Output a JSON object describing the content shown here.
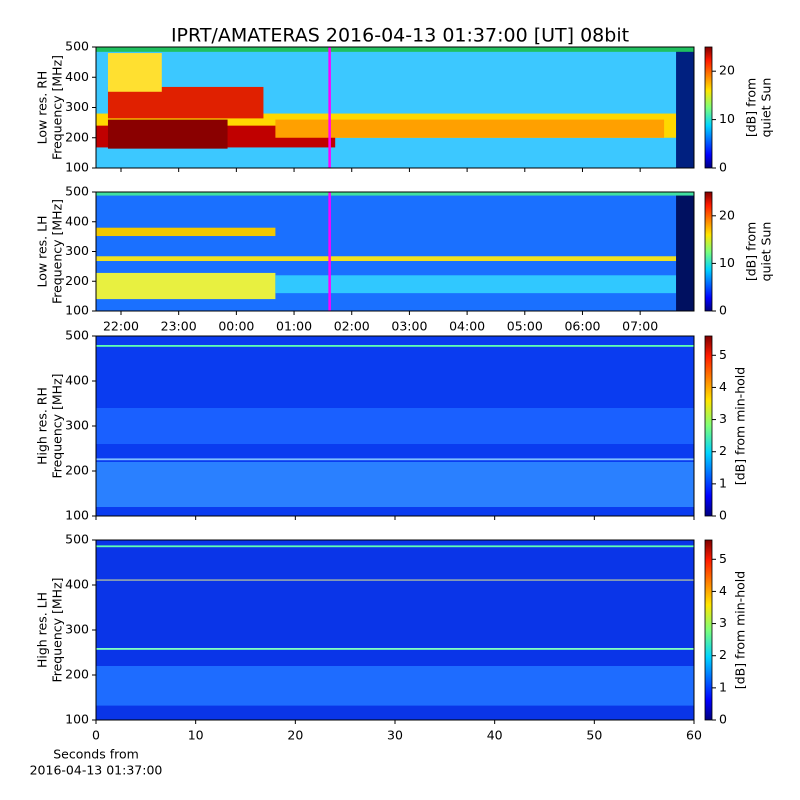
{
  "chart_data": [
    {
      "type": "heatmap",
      "title": "IPRT/AMATERAS 2016-04-13 01:37:00 [UT]   08bit",
      "ylabel": [
        "Low res. RH",
        "Frequency [MHz]"
      ],
      "ylim": [
        100,
        500
      ],
      "yticks": [
        100,
        200,
        300,
        400,
        500
      ],
      "xlim": [
        "21:34",
        "07:56"
      ],
      "xticks": [
        "22:00",
        "23:00",
        "00:00",
        "01:00",
        "02:00",
        "03:00",
        "04:00",
        "05:00",
        "06:00",
        "07:00"
      ],
      "show_xtick_labels": false,
      "marker": {
        "x": "01:37",
        "color": "#ff00ff"
      },
      "colorbar": {
        "label": [
          "[dB] from",
          "quiet Sun"
        ],
        "lim": [
          0,
          25
        ],
        "ticks": [
          0,
          10,
          20
        ],
        "cmap": "jet"
      }
    },
    {
      "type": "heatmap",
      "ylabel": [
        "Low res. LH",
        "Frequency [MHz]"
      ],
      "ylim": [
        100,
        500
      ],
      "yticks": [
        100,
        200,
        300,
        400,
        500
      ],
      "xlim": [
        "21:34",
        "07:56"
      ],
      "xticks": [
        "22:00",
        "23:00",
        "00:00",
        "01:00",
        "02:00",
        "03:00",
        "04:00",
        "05:00",
        "06:00",
        "07:00"
      ],
      "show_xtick_labels": true,
      "marker": {
        "x": "01:37",
        "color": "#ff00ff"
      },
      "colorbar": {
        "label": [
          "[dB] from",
          "quiet Sun"
        ],
        "lim": [
          0,
          25
        ],
        "ticks": [
          0,
          10,
          20
        ],
        "cmap": "jet"
      }
    },
    {
      "type": "heatmap",
      "ylabel": [
        "High res. RH",
        "Frequency [MHz]"
      ],
      "ylim": [
        100,
        500
      ],
      "yticks": [
        100,
        200,
        300,
        400,
        500
      ],
      "xlim": [
        0,
        60
      ],
      "xticks": [
        0,
        10,
        20,
        30,
        40,
        50,
        60
      ],
      "show_xtick_labels": false,
      "colorbar": {
        "label": [
          "[dB] from min-hold"
        ],
        "lim": [
          0,
          5.6
        ],
        "ticks": [
          0,
          1,
          2,
          3,
          4,
          5
        ],
        "cmap": "jet"
      }
    },
    {
      "type": "heatmap",
      "ylabel": [
        "High res. LH",
        "Frequency [MHz]"
      ],
      "ylim": [
        100,
        500
      ],
      "yticks": [
        100,
        200,
        300,
        400,
        500
      ],
      "xlim": [
        0,
        60
      ],
      "xticks": [
        0,
        10,
        20,
        30,
        40,
        50,
        60
      ],
      "show_xtick_labels": true,
      "xlabel": [
        "Seconds from",
        "2016-04-13 01:37:00"
      ],
      "colorbar": {
        "label": [
          "[dB] from min-hold"
        ],
        "lim": [
          0,
          5.6
        ],
        "ticks": [
          0,
          1,
          2,
          3,
          4,
          5
        ],
        "cmap": "jet"
      }
    }
  ]
}
